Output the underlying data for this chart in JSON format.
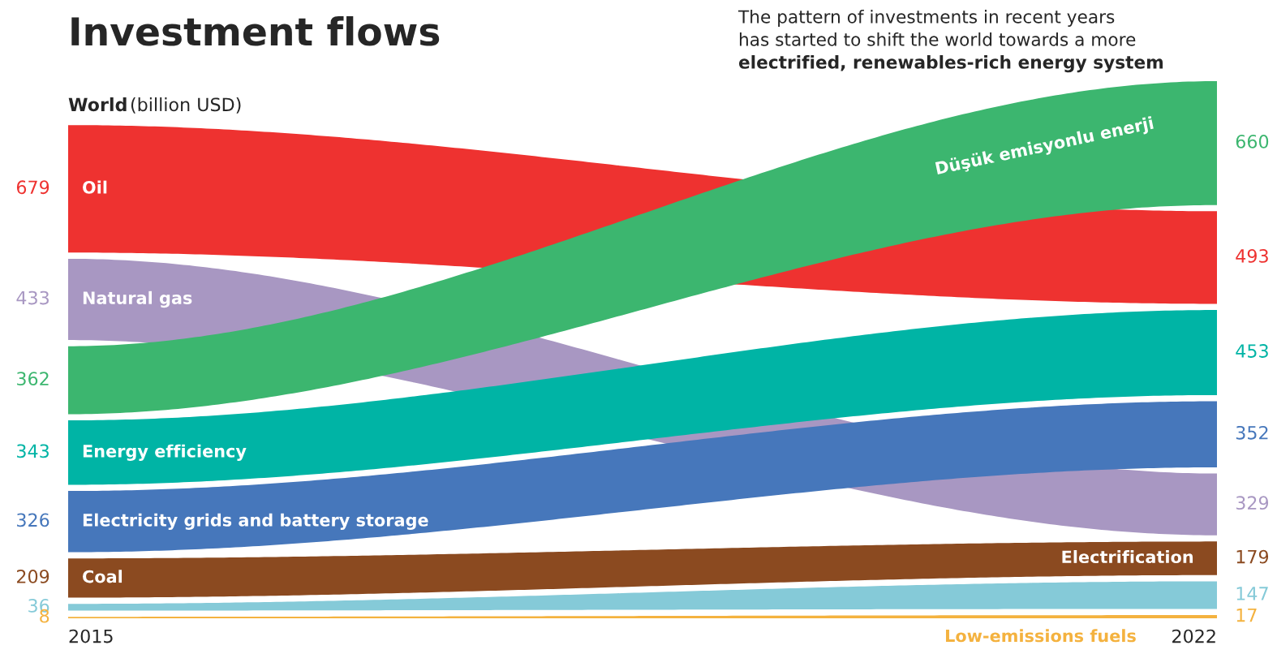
{
  "chart_data": {
    "type": "other",
    "title": "Investment flows",
    "subtitle": "The pattern of investments in recent years\nhas started to shift the world towards a more\nelectrified, renewables-rich energy system",
    "annotations": [
      "World",
      "(billion USD)"
    ],
    "categories": [
      "2015",
      "2022"
    ],
    "data_labels": true,
    "colors": [
      "#ee3230",
      "#a897c2",
      "#3cb66f",
      "#00b4a5",
      "#4677bb",
      "#8b4a20",
      "#85cad8",
      "#f4b23f"
    ],
    "series": [
      {
        "name": "Oil",
        "values": [
          679,
          493
        ]
      },
      {
        "name": "Natural gas",
        "values": [
          433,
          329
        ]
      },
      {
        "name": "Düşük emisyonlu enerji",
        "values": [
          362,
          660
        ]
      },
      {
        "name": "Energy efficiency",
        "values": [
          343,
          453
        ]
      },
      {
        "name": "Electricity grids and battery storage",
        "values": [
          326,
          352
        ]
      },
      {
        "name": "Coal",
        "values": [
          209,
          179
        ]
      },
      {
        "name": "Electrification",
        "values": [
          36,
          147
        ]
      },
      {
        "name": "Low-emissions fuels",
        "values": [
          8,
          17
        ]
      }
    ]
  }
}
